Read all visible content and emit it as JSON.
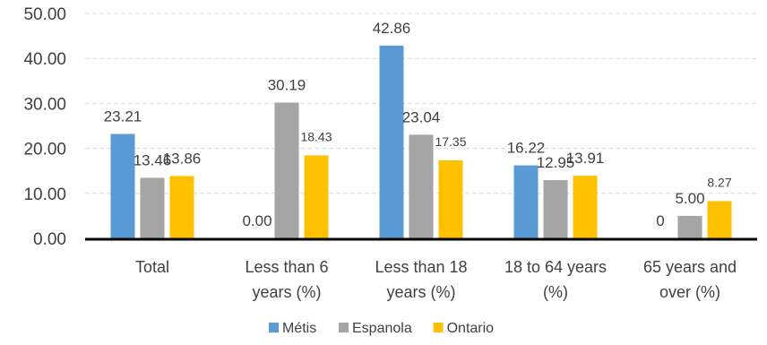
{
  "chart_data": {
    "type": "bar",
    "categories": [
      [
        "Total"
      ],
      [
        "Less than 6",
        "years (%)"
      ],
      [
        "Less than 18",
        "years (%)"
      ],
      [
        "18 to 64 years",
        "(%)"
      ],
      [
        "65 years and",
        "over (%)"
      ]
    ],
    "series": [
      {
        "name": "Métis",
        "color": "#5b9bd5",
        "values": [
          23.21,
          0.0,
          42.86,
          16.22,
          0
        ],
        "labels": [
          "23.21",
          "0.00",
          "42.86",
          "16.22",
          "0"
        ]
      },
      {
        "name": "Espanola",
        "color": "#a5a5a5",
        "values": [
          13.46,
          30.19,
          23.04,
          12.95,
          5.0
        ],
        "labels": [
          "13.46",
          "30.19",
          "23.04",
          "12.95",
          "5.00"
        ]
      },
      {
        "name": "Ontario",
        "color": "#ffc000",
        "values": [
          13.86,
          18.43,
          17.35,
          13.91,
          8.27
        ],
        "labels": [
          "13.86",
          "18.43",
          "17.35",
          "13.91",
          "8.27"
        ]
      }
    ],
    "y_ticks": [
      "0.00",
      "10.00",
      "20.00",
      "30.00",
      "40.00",
      "50.00"
    ],
    "ylim": [
      0,
      50
    ],
    "grid": true,
    "legend_position": "bottom"
  }
}
